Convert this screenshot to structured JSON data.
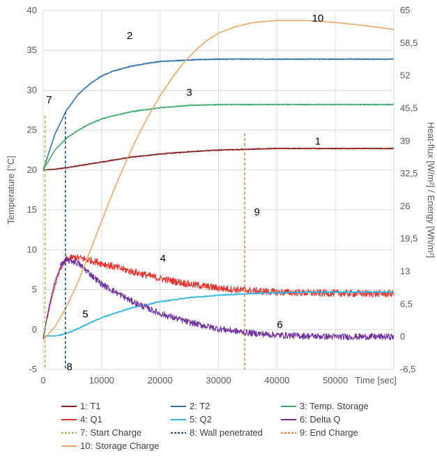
{
  "chart_data": {
    "type": "line",
    "title": "",
    "xlabel": "Time [sec]",
    "ylabel_left": "Temperature [°C]",
    "ylabel_right": "Heat-flux [W/m²]  /  Energy [Wh/m²]",
    "xlim": [
      0,
      60000
    ],
    "ylim_left": [
      -5,
      40
    ],
    "ylim_right": [
      -6.5,
      65
    ],
    "x_ticks": [
      "0",
      "10000",
      "20000",
      "30000",
      "40000",
      "50000"
    ],
    "y_left_ticks": [
      "-5",
      "0",
      "5",
      "10",
      "15",
      "20",
      "25",
      "30",
      "35",
      "40"
    ],
    "y_right_ticks": [
      "-6,5",
      "0",
      "6,5",
      "13",
      "19,5",
      "26",
      "32,5",
      "39",
      "45,5",
      "52",
      "58,5",
      "65"
    ],
    "grid": true,
    "legend_position": "bottom",
    "series": [
      {
        "name": "1: T1",
        "axis": "left",
        "color": "#8B1A1A",
        "noise": 0.05,
        "x": [
          0,
          2000,
          5000,
          10000,
          15000,
          20000,
          25000,
          30000,
          35000,
          40000,
          45000,
          50000,
          55000,
          60000
        ],
        "y": [
          20.0,
          20.1,
          20.4,
          21.0,
          21.6,
          22.0,
          22.3,
          22.5,
          22.6,
          22.7,
          22.7,
          22.7,
          22.7,
          22.7
        ]
      },
      {
        "name": "2: T2",
        "axis": "left",
        "color": "#2E75B6",
        "noise": 0.05,
        "x": [
          0,
          2000,
          4000,
          6000,
          8000,
          10000,
          12000,
          15000,
          18000,
          20000,
          25000,
          30000,
          35000,
          40000,
          45000,
          50000,
          55000,
          60000
        ],
        "y": [
          20.0,
          24.5,
          27.5,
          29.5,
          30.8,
          31.8,
          32.4,
          33.0,
          33.4,
          33.6,
          33.8,
          33.9,
          33.9,
          33.9,
          33.9,
          33.9,
          33.9,
          33.9
        ]
      },
      {
        "name": "3: Temp. Storage",
        "axis": "left",
        "color": "#3BAE6C",
        "noise": 0.05,
        "x": [
          0,
          2000,
          4000,
          6000,
          8000,
          10000,
          12000,
          15000,
          18000,
          20000,
          25000,
          30000,
          35000,
          40000,
          45000,
          50000,
          55000,
          60000
        ],
        "y": [
          20.0,
          22.5,
          24.0,
          25.0,
          25.8,
          26.4,
          26.8,
          27.3,
          27.6,
          27.8,
          28.1,
          28.2,
          28.2,
          28.2,
          28.2,
          28.2,
          28.2,
          28.2
        ]
      },
      {
        "name": "4: Q1",
        "axis": "left",
        "color": "#E8312A",
        "noise": 0.45,
        "x": [
          0,
          1000,
          2000,
          3000,
          4000,
          5000,
          6000,
          8000,
          10000,
          15000,
          20000,
          25000,
          30000,
          35000,
          40000,
          45000,
          50000,
          55000,
          60000
        ],
        "y": [
          -1.0,
          2.5,
          5.5,
          7.8,
          8.8,
          9.0,
          9.0,
          8.7,
          8.3,
          7.3,
          6.4,
          5.7,
          5.2,
          4.9,
          4.7,
          4.6,
          4.55,
          4.5,
          4.5
        ]
      },
      {
        "name": "5: Q2",
        "axis": "left",
        "color": "#32B4E5",
        "noise": 0.06,
        "x": [
          0,
          2000,
          3500,
          5000,
          7000,
          10000,
          15000,
          20000,
          25000,
          30000,
          35000,
          40000,
          45000,
          50000,
          55000,
          60000
        ],
        "y": [
          -0.8,
          -0.8,
          -0.6,
          -0.2,
          0.5,
          1.5,
          2.7,
          3.5,
          4.0,
          4.3,
          4.5,
          4.6,
          4.7,
          4.7,
          4.7,
          4.7
        ]
      },
      {
        "name": "6: Delta Q",
        "axis": "left",
        "color": "#7030A0",
        "noise": 0.4,
        "x": [
          0,
          1000,
          2000,
          3000,
          4000,
          5000,
          6000,
          8000,
          10000,
          15000,
          20000,
          25000,
          30000,
          35000,
          40000,
          45000,
          50000,
          55000,
          60000
        ],
        "y": [
          -1.2,
          3.0,
          6.0,
          8.0,
          8.7,
          8.6,
          8.3,
          7.0,
          5.7,
          3.6,
          2.0,
          0.9,
          0.1,
          -0.4,
          -0.7,
          -0.8,
          -0.9,
          -0.9,
          -0.9
        ]
      },
      {
        "name": "10: Storage Charge",
        "axis": "right",
        "color": "#F4A460",
        "noise": 0,
        "x": [
          0,
          2000,
          4000,
          6000,
          8000,
          10000,
          12000,
          14000,
          16000,
          18000,
          20000,
          22000,
          24000,
          26000,
          28000,
          30000,
          33000,
          36000,
          40000,
          45000,
          50000,
          55000,
          60000
        ],
        "y": [
          -0.6,
          2.0,
          6.0,
          11.0,
          17.0,
          23.0,
          29.0,
          34.5,
          39.5,
          44.0,
          48.0,
          51.5,
          54.5,
          57.0,
          59.0,
          60.5,
          61.8,
          62.6,
          63.0,
          63.0,
          62.6,
          62.0,
          61.2
        ]
      }
    ],
    "vertical_markers": [
      {
        "name": "7: Start Charge",
        "x": 300,
        "color": "#9BBB59"
      },
      {
        "name": "8: Wall penetrated",
        "x": 3800,
        "color": "#1F4E79"
      },
      {
        "name": "9: End Charge",
        "x": 34500,
        "color": "#ED7D31"
      }
    ],
    "annotations": [
      {
        "text": "1",
        "x": 47000,
        "y": 23.2
      },
      {
        "text": "2",
        "x": 14800,
        "y": 36.4
      },
      {
        "text": "3",
        "x": 25000,
        "y": 29.3
      },
      {
        "text": "4",
        "x": 20500,
        "y": 8.5
      },
      {
        "text": "5",
        "x": 7200,
        "y": 1.5
      },
      {
        "text": "6",
        "x": 40500,
        "y": 0.2
      },
      {
        "text": "7",
        "x": 1000,
        "y": 28.4
      },
      {
        "text": "8",
        "x": 4500,
        "y": -5.1
      },
      {
        "text": "9",
        "x": 36600,
        "y": 14.3
      },
      {
        "text": "10",
        "x": 47000,
        "y": 38.6
      }
    ],
    "legend": [
      {
        "label": "1: T1",
        "color": "#8B1A1A",
        "dashed": false
      },
      {
        "label": "2: T2",
        "color": "#2E75B6",
        "dashed": false
      },
      {
        "label": "3: Temp. Storage",
        "color": "#3BAE6C",
        "dashed": false
      },
      {
        "label": "4: Q1",
        "color": "#E8312A",
        "dashed": false
      },
      {
        "label": "5: Q2",
        "color": "#32B4E5",
        "dashed": false
      },
      {
        "label": "6: Delta Q",
        "color": "#7030A0",
        "dashed": false
      },
      {
        "label": "7: Start Charge",
        "color": "#9BBB59",
        "dashed": true
      },
      {
        "label": "8: Wall penetrated",
        "color": "#1F4E79",
        "dashed": true
      },
      {
        "label": "9: End Charge",
        "color": "#ED7D31",
        "dashed": true
      },
      {
        "label": "10: Storage Charge",
        "color": "#F4A460",
        "dashed": false
      }
    ]
  }
}
